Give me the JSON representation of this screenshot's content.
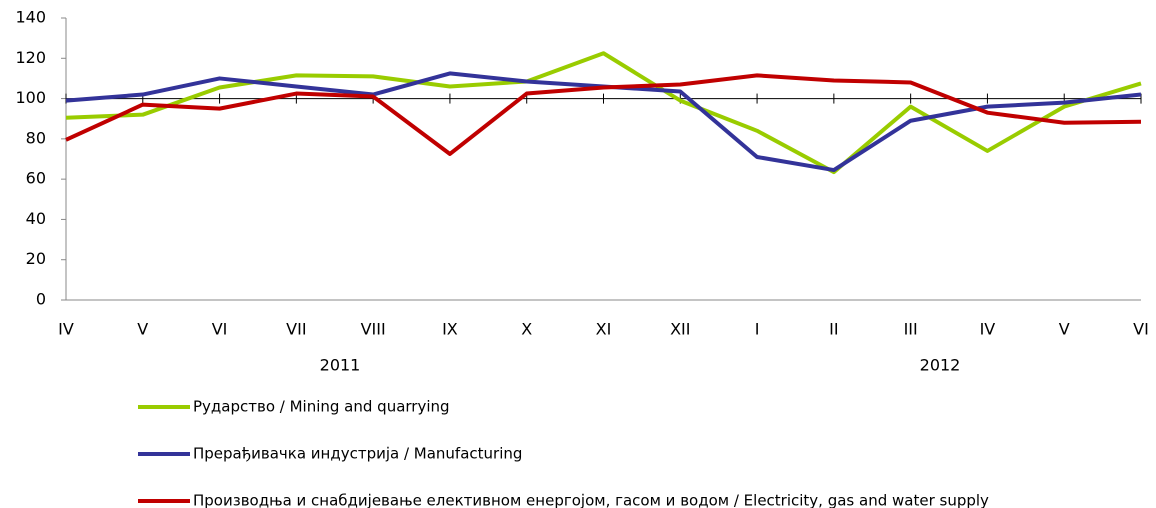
{
  "chart_data": {
    "type": "line",
    "categories": [
      "IV",
      "V",
      "VI",
      "VII",
      "VIII",
      "IX",
      "X",
      "XI",
      "XII",
      "I",
      "II",
      "III",
      "IV",
      "V",
      "VI"
    ],
    "annotations": [
      "2011",
      "2012"
    ],
    "series": [
      {
        "name": "Рударство / Mining and quarrying",
        "color": "#99cc00",
        "values": [
          90.5,
          92,
          105.5,
          111.5,
          111,
          106,
          108.5,
          122.5,
          99,
          84,
          63.5,
          96,
          74,
          96,
          107.5
        ]
      },
      {
        "name": "Прерађивачка индустрија / Manufacturing",
        "color": "#333399",
        "values": [
          99,
          102,
          110,
          106,
          102,
          112.5,
          108.5,
          106,
          103.5,
          71,
          64.5,
          89,
          96,
          98,
          102
        ]
      },
      {
        "name": "Производња и снабдијевање елективном енергојом, гасом и  водом / Electricity, gas and water supply",
        "color": "#c00000",
        "values": [
          79.5,
          97,
          95,
          102.5,
          101,
          72.5,
          102.5,
          105.5,
          107,
          111.5,
          109,
          108,
          93,
          88,
          88.5
        ]
      }
    ],
    "ylim": [
      0,
      140
    ],
    "yticks": [
      0,
      20,
      40,
      60,
      80,
      100,
      120,
      140
    ],
    "reference_line": 100,
    "grid": false
  }
}
